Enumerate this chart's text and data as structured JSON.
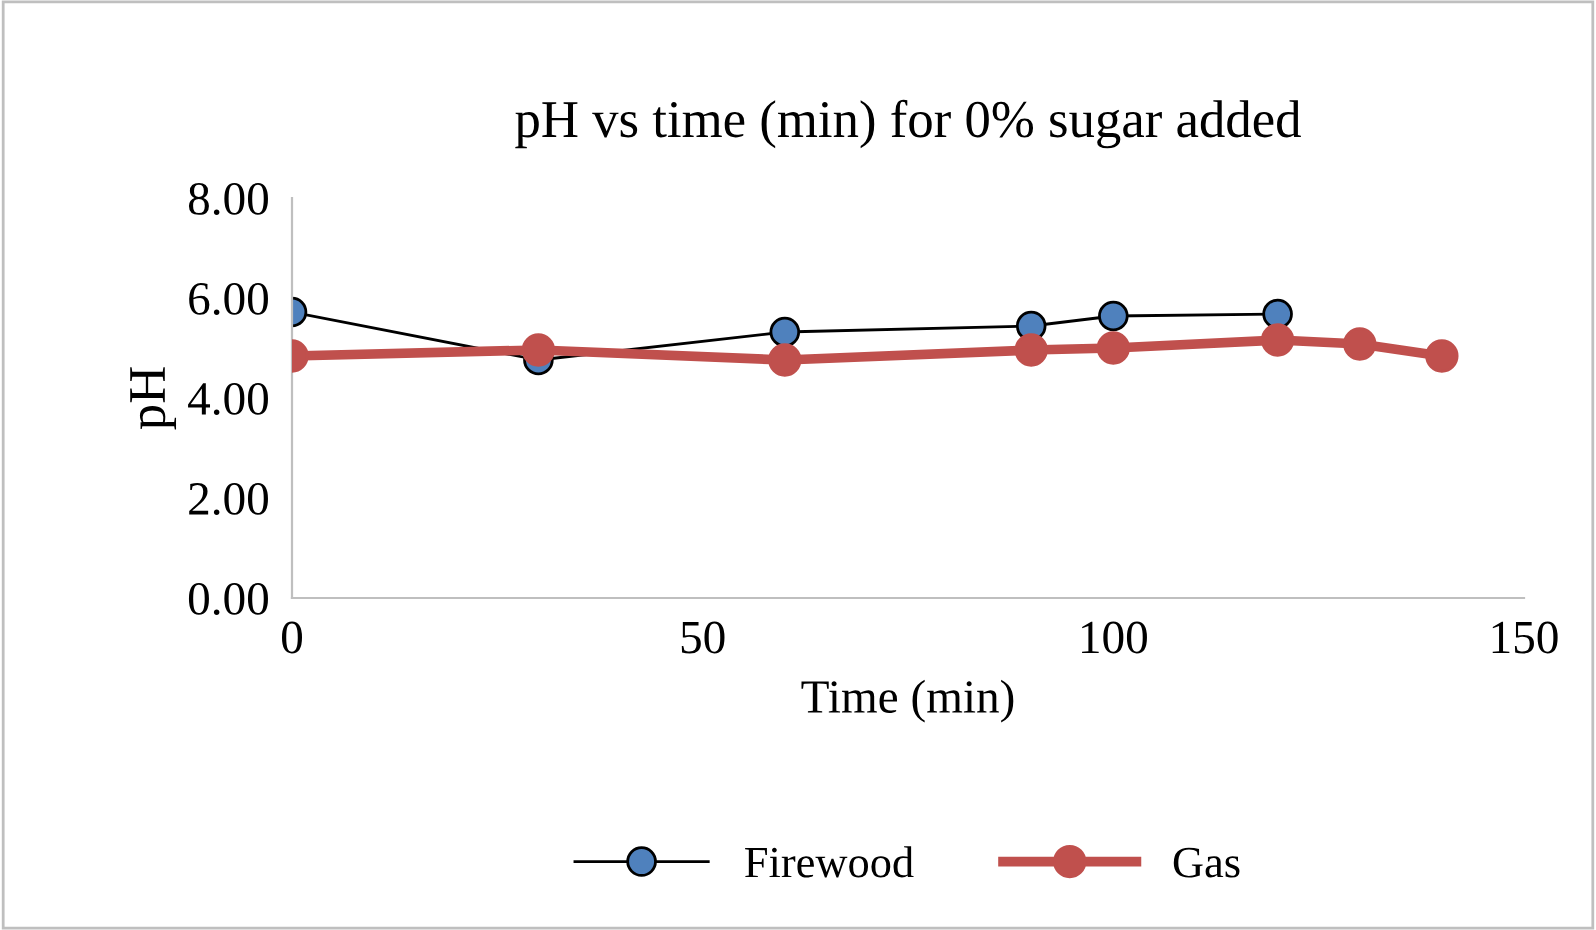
{
  "chart_data": {
    "type": "line",
    "title": "pH vs time (min) for 0% sugar added",
    "xlabel": "Time (min)",
    "ylabel": "pH",
    "xlim": [
      0,
      150
    ],
    "xticks": [
      0,
      50,
      100,
      150
    ],
    "ylim": [
      0,
      8
    ],
    "yticks": [
      {
        "value": 0,
        "label": "0.00"
      },
      {
        "value": 2,
        "label": "2.00"
      },
      {
        "value": 4,
        "label": "4.00"
      },
      {
        "value": 6,
        "label": "6.00"
      },
      {
        "value": 8,
        "label": "8.00"
      }
    ],
    "grid": false,
    "legend": "bottom",
    "marker": "circle",
    "series": [
      {
        "name": "Firewood",
        "color": "#4f81bd",
        "x": [
          0,
          30,
          60,
          90,
          100,
          120
        ],
        "values": [
          5.72,
          4.76,
          5.32,
          5.44,
          5.64,
          5.68
        ]
      },
      {
        "name": "Gas",
        "color": "#c0504d",
        "x": [
          0,
          30,
          60,
          90,
          100,
          120,
          130,
          140
        ],
        "values": [
          4.84,
          4.96,
          4.76,
          4.96,
          5.0,
          5.16,
          5.08,
          4.84
        ]
      }
    ]
  }
}
